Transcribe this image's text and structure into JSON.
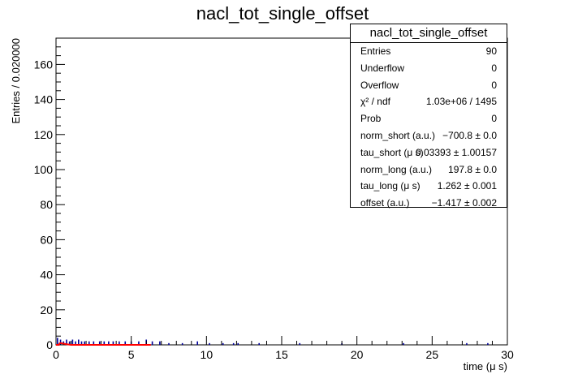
{
  "chart_data": {
    "type": "histogram",
    "title": "nacl_tot_single_offset",
    "xlabel": "time (μ s)",
    "ylabel": "Entries / 0.020000",
    "xlim": [
      0,
      30
    ],
    "ylim": [
      0,
      175
    ],
    "x_ticks": [
      0,
      5,
      10,
      15,
      20,
      25,
      30
    ],
    "y_ticks": [
      0,
      20,
      40,
      60,
      80,
      100,
      120,
      140,
      160
    ],
    "bin_width": 0.02,
    "grid": false,
    "histogram": {
      "color": "#000099",
      "bins": [
        {
          "x": 0.1,
          "y": 4
        },
        {
          "x": 0.3,
          "y": 3
        },
        {
          "x": 0.5,
          "y": 2
        },
        {
          "x": 0.7,
          "y": 3
        },
        {
          "x": 0.9,
          "y": 2
        },
        {
          "x": 1.1,
          "y": 3
        },
        {
          "x": 1.3,
          "y": 2
        },
        {
          "x": 1.5,
          "y": 3
        },
        {
          "x": 1.7,
          "y": 2
        },
        {
          "x": 1.9,
          "y": 2
        },
        {
          "x": 2.2,
          "y": 2
        },
        {
          "x": 2.5,
          "y": 2
        },
        {
          "x": 2.9,
          "y": 2
        },
        {
          "x": 3.2,
          "y": 2
        },
        {
          "x": 3.5,
          "y": 2
        },
        {
          "x": 3.8,
          "y": 2
        },
        {
          "x": 4.2,
          "y": 2
        },
        {
          "x": 4.6,
          "y": 2
        },
        {
          "x": 5.0,
          "y": 2
        },
        {
          "x": 5.5,
          "y": 2
        },
        {
          "x": 6.0,
          "y": 3
        },
        {
          "x": 6.4,
          "y": 2
        },
        {
          "x": 6.9,
          "y": 2
        },
        {
          "x": 7.5,
          "y": 1
        },
        {
          "x": 8.4,
          "y": 1
        },
        {
          "x": 9.4,
          "y": 2
        },
        {
          "x": 10.2,
          "y": 1
        },
        {
          "x": 11.1,
          "y": 1
        },
        {
          "x": 11.8,
          "y": 1
        },
        {
          "x": 12.1,
          "y": 1
        },
        {
          "x": 13.5,
          "y": 1
        },
        {
          "x": 16.2,
          "y": 1
        },
        {
          "x": 19.0,
          "y": 1
        },
        {
          "x": 23.1,
          "y": 1
        },
        {
          "x": 27.3,
          "y": 1
        },
        {
          "x": 28.7,
          "y": 1
        }
      ]
    },
    "fit": {
      "color": "#ff0000",
      "x_range": [
        0.0,
        6.3
      ],
      "norm_short": -700.8,
      "tau_short": 0.03393,
      "norm_long": 197.8,
      "tau_long": 1.262,
      "offset": -1.417,
      "bin_width": 0.02
    },
    "stats": {
      "title": "nacl_tot_single_offset",
      "rows": [
        {
          "key": "Entries",
          "value": "90"
        },
        {
          "key": "Underflow",
          "value": "0"
        },
        {
          "key": "Overflow",
          "value": "0"
        },
        {
          "key": "χ² / ndf",
          "value": "1.03e+06 / 1495"
        },
        {
          "key": "Prob",
          "value": "0"
        },
        {
          "key": "norm_short (a.u.)",
          "value": "−700.8 ± 0.0"
        },
        {
          "key": "tau_short (μ s)",
          "value": "0.03393 ± 1.00157"
        },
        {
          "key": "norm_long (a.u.)",
          "value": "197.8 ± 0.0"
        },
        {
          "key": "tau_long (μ s)",
          "value": "1.262 ± 0.001"
        },
        {
          "key": "offset (a.u.)",
          "value": "−1.417 ± 0.002"
        }
      ]
    }
  }
}
